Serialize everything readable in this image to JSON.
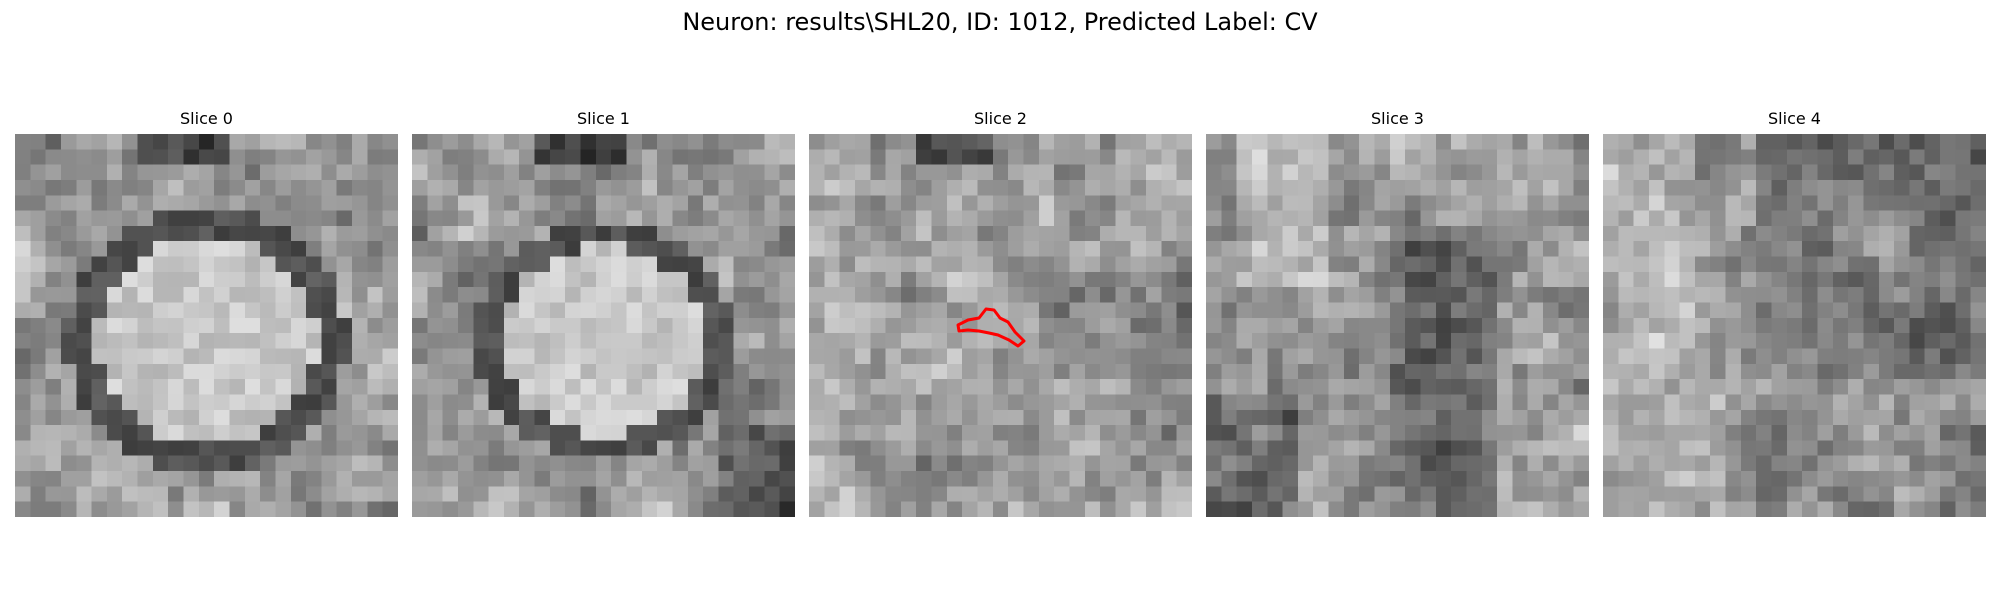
{
  "figure": {
    "title": "Neuron: results\\SHL20, ID: 1012, Predicted Label: CV"
  },
  "panels": [
    {
      "label": "Slice 0",
      "style": "ring-bright-center",
      "seed": 11
    },
    {
      "label": "Slice 1",
      "style": "ring-bright-center-sharp",
      "seed": 23
    },
    {
      "label": "Slice 2",
      "style": "diffuse-with-contour",
      "seed": 37
    },
    {
      "label": "Slice 3",
      "style": "dark-vertical-band",
      "seed": 41
    },
    {
      "label": "Slice 4",
      "style": "uniform-noise",
      "seed": 53
    }
  ],
  "colors": {
    "contour": "#ff0000",
    "background": "#ffffff",
    "text": "#000000"
  },
  "grid_size": 25
}
